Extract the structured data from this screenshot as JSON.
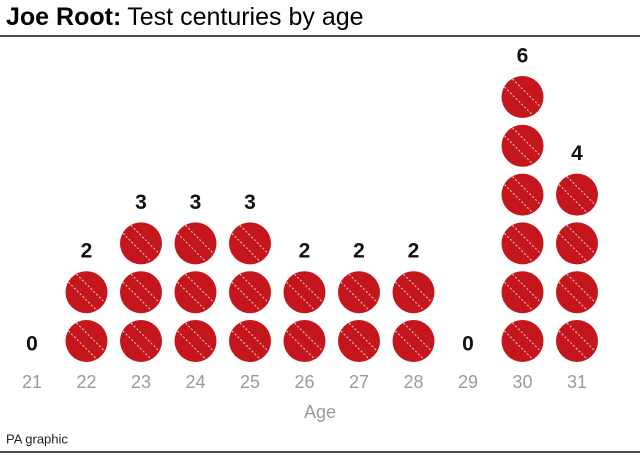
{
  "chart_data": {
    "type": "pictogram",
    "title_bold": "Joe Root:",
    "title": "Test centuries by age",
    "categories": [
      "21",
      "22",
      "23",
      "24",
      "25",
      "26",
      "27",
      "28",
      "29",
      "30",
      "31"
    ],
    "values": [
      0,
      2,
      3,
      3,
      3,
      2,
      2,
      2,
      0,
      6,
      4
    ],
    "color": "#c4161c",
    "xlabel": "Age",
    "source": "PA graphic"
  }
}
